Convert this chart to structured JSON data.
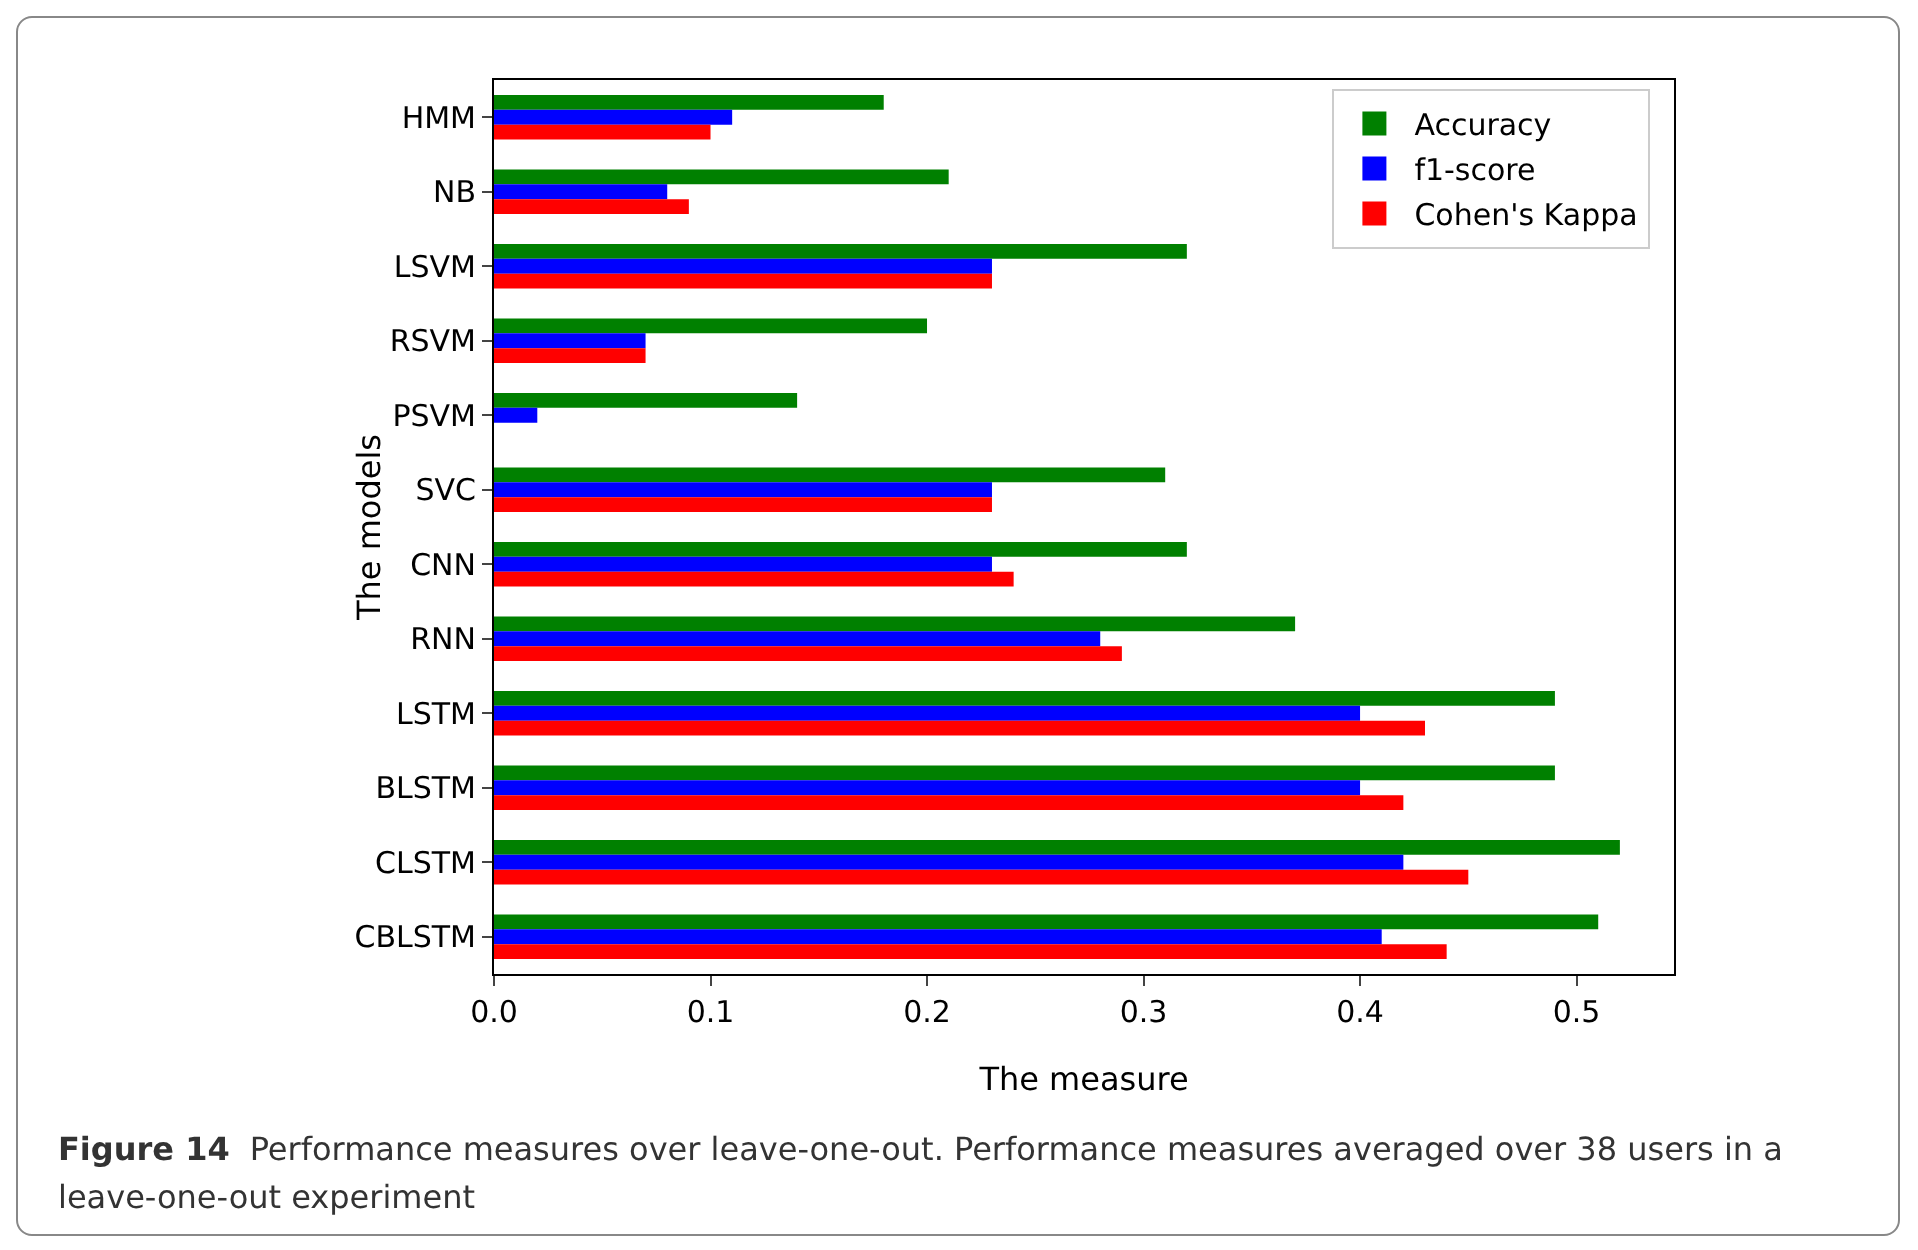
{
  "chart_data": {
    "type": "bar",
    "orientation": "horizontal",
    "xlabel": "The measure",
    "ylabel": "The models",
    "categories": [
      "HMM",
      "NB",
      "LSVM",
      "RSVM",
      "PSVM",
      "SVC",
      "CNN",
      "RNN",
      "LSTM",
      "BLSTM",
      "CLSTM",
      "CBLSTM"
    ],
    "series": [
      {
        "name": "Accuracy",
        "color": "#008000",
        "values": [
          0.18,
          0.21,
          0.32,
          0.2,
          0.14,
          0.31,
          0.32,
          0.37,
          0.49,
          0.49,
          0.52,
          0.51
        ]
      },
      {
        "name": "f1-score",
        "color": "#0000ff",
        "values": [
          0.11,
          0.08,
          0.23,
          0.07,
          0.02,
          0.23,
          0.23,
          0.28,
          0.4,
          0.4,
          0.42,
          0.41
        ]
      },
      {
        "name": "Cohen's Kappa",
        "color": "#ff0000",
        "values": [
          0.1,
          0.09,
          0.23,
          0.07,
          0.0,
          0.23,
          0.24,
          0.29,
          0.43,
          0.42,
          0.45,
          0.44
        ]
      }
    ],
    "xlim": [
      0,
      0.545
    ],
    "xticks": [
      {
        "value": 0,
        "label": "0.0"
      },
      0.1,
      0.2,
      0.3,
      0.4,
      0.5
    ],
    "grid": false,
    "legend": "top right",
    "annotations": [
      "Figure 14",
      "Performance measures over leave-one-out. Performance measures averaged over 38 users in a leave-one-out experiment"
    ]
  }
}
